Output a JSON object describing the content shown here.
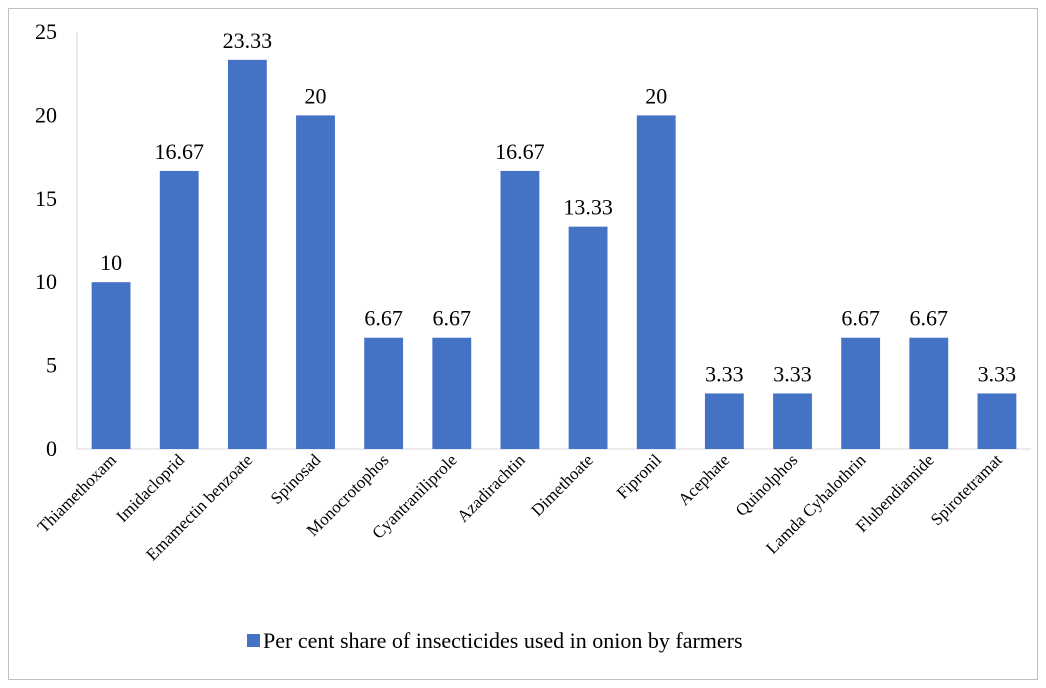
{
  "chart_data": {
    "type": "bar",
    "categories": [
      "Thiamethoxam",
      "Imidacloprid",
      "Emamectin benzoate",
      "Spinosad",
      "Monocrotophos",
      "Cyantraniliprole",
      "Azadirachtin",
      "Dimethoate",
      "Fipronil",
      "Acephate",
      "Quinolphos",
      "Lamda Cyhalothrin",
      "Flubendiamide",
      "Spirotetramat"
    ],
    "series": [
      {
        "name": "Per cent share of insecticides used in onion by farmers",
        "values": [
          10,
          16.67,
          23.33,
          20,
          6.67,
          6.67,
          16.67,
          13.33,
          20,
          3.33,
          3.33,
          6.67,
          6.67,
          3.33
        ],
        "data_labels": [
          "10",
          "16.67",
          "23.33",
          "20",
          "6.67",
          "6.67",
          "16.67",
          "13.33",
          "20",
          "3.33",
          "3.33",
          "6.67",
          "6.67",
          "3.33"
        ],
        "color": "#4472C4"
      }
    ],
    "yticks": [
      "0",
      "5",
      "10",
      "15",
      "20",
      "25"
    ],
    "ylim": [
      0,
      25
    ],
    "grid": false,
    "legend_position": "bottom"
  }
}
